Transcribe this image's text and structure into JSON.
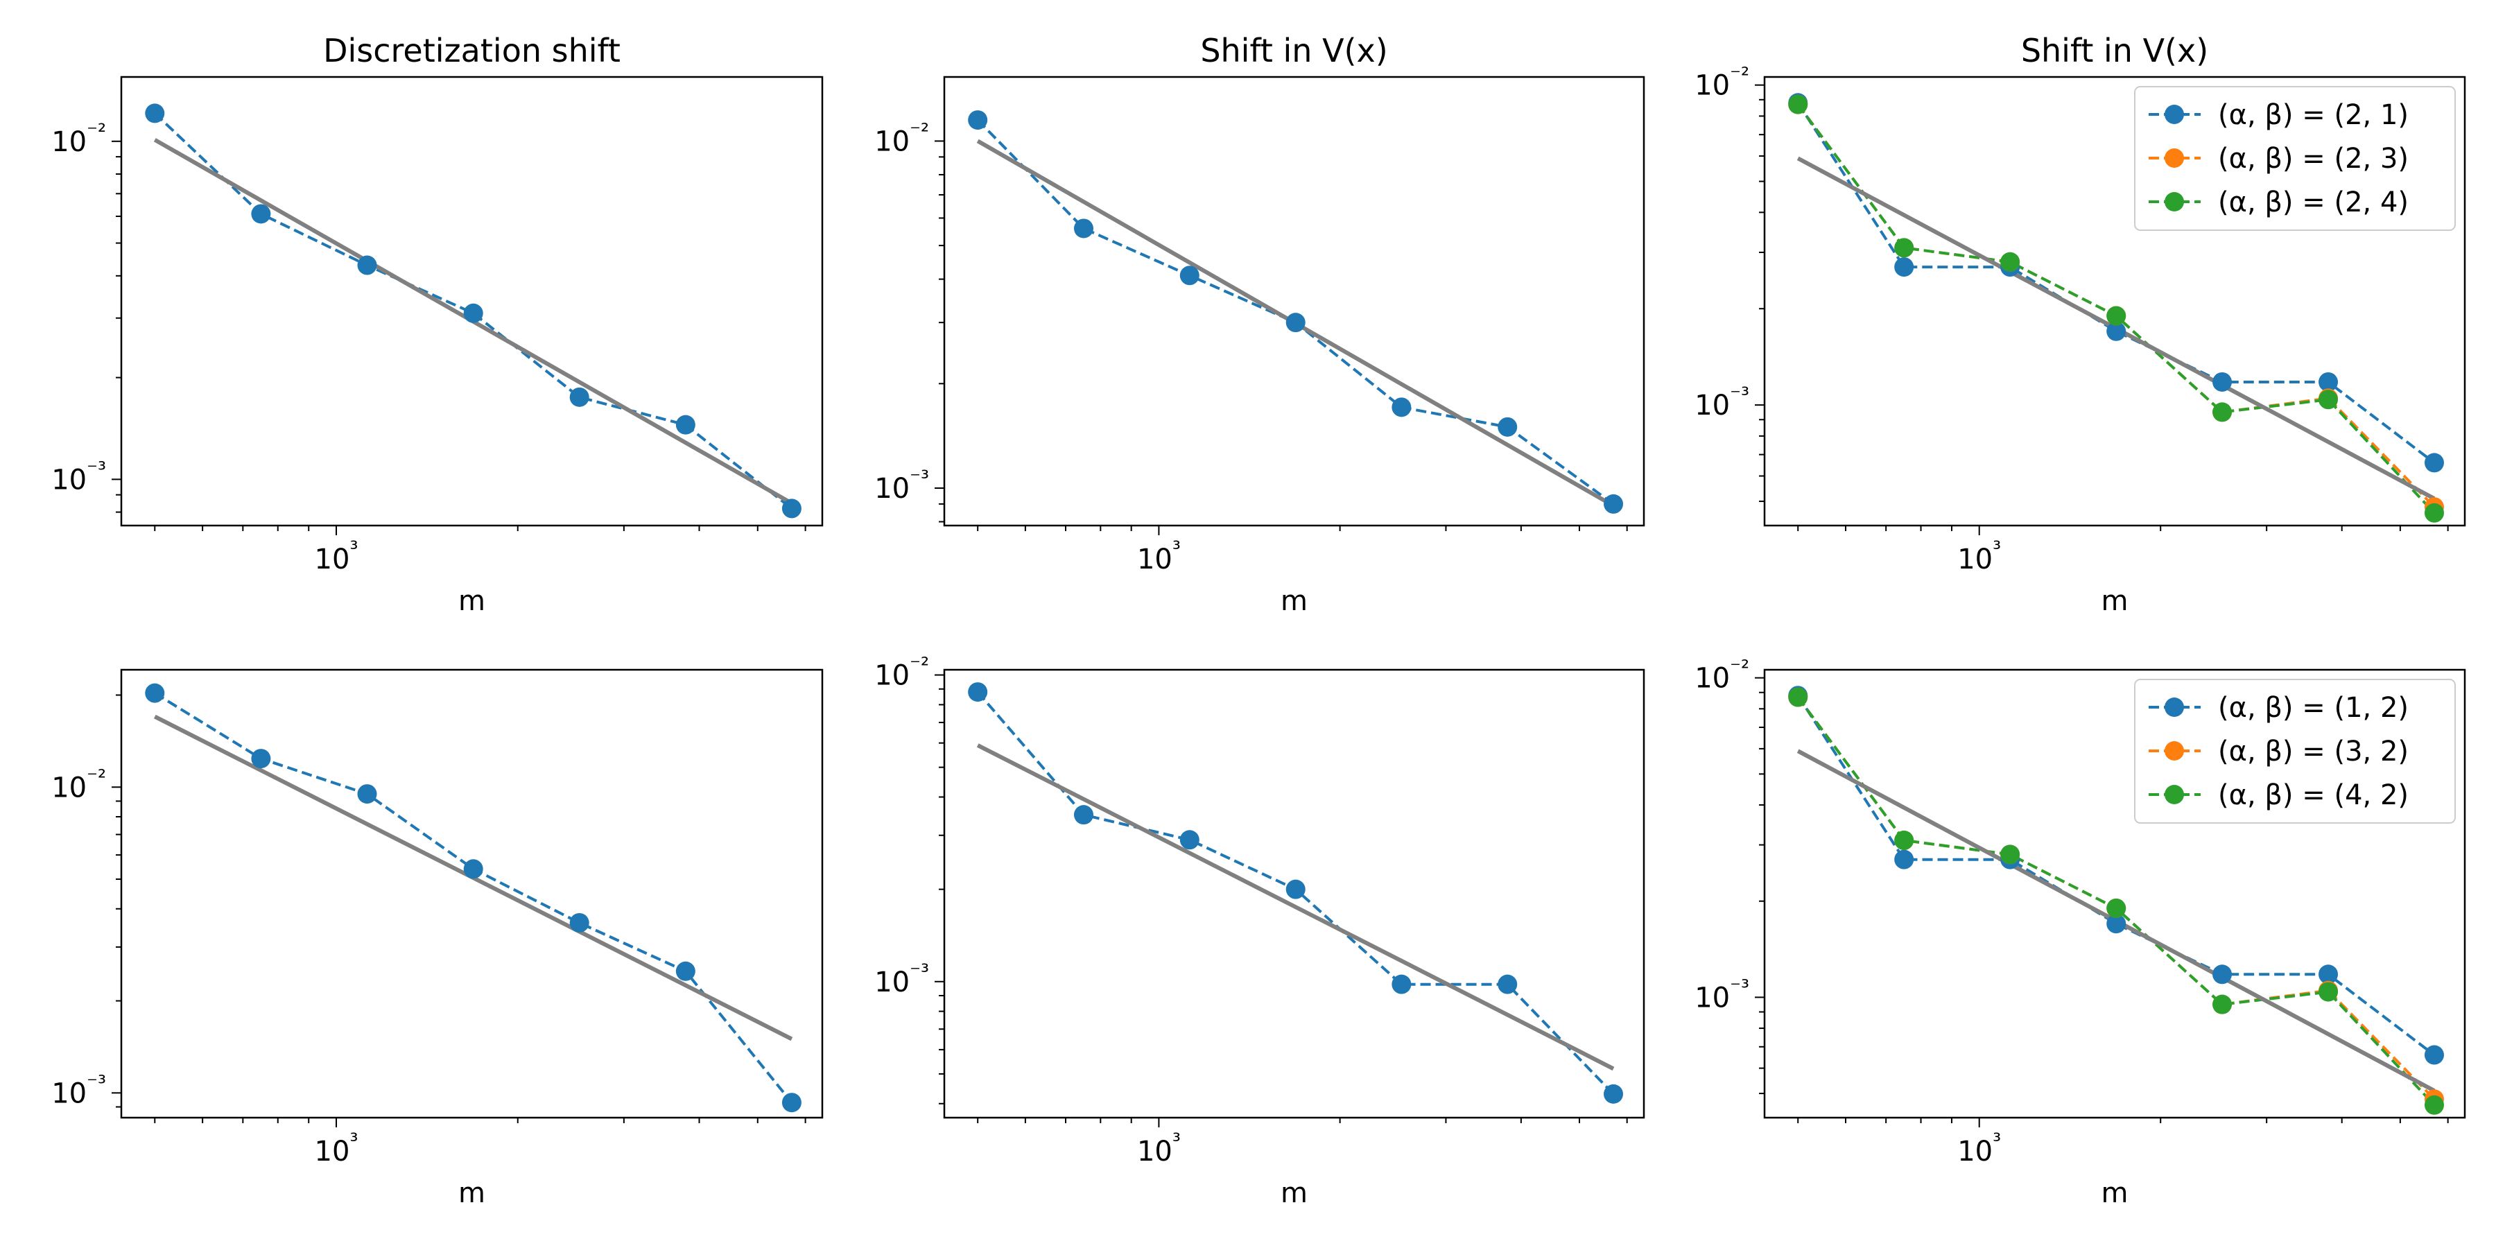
{
  "figure": {
    "colors": {
      "blue": "#1f77b4",
      "orange": "#ff7f0e",
      "green": "#2ca02c",
      "fit": "#808080"
    }
  },
  "chart_data": [
    {
      "type": "line",
      "title": "Discretization shift",
      "xlabel": "m",
      "ylabel": "",
      "xscale": "log",
      "yscale": "log",
      "xlim": [
        440,
        6400
      ],
      "ylim": [
        0.00073,
        0.0155
      ],
      "x_tick_labels": [
        "10³"
      ],
      "y_tick_labels": [
        "10⁻²",
        "10⁻³"
      ],
      "legend": null,
      "series": [
        {
          "color": "#1f77b4",
          "style": "dashed-markers",
          "x": [
            500,
            750,
            1125,
            1688,
            2531,
            3797,
            5695
          ],
          "y": [
            0.0121,
            0.0061,
            0.0043,
            0.0031,
            0.00175,
            0.00145,
            0.00082
          ]
        },
        {
          "color": "#808080",
          "style": "solid-fit",
          "x": [
            500,
            5695
          ],
          "y": [
            0.0101,
            0.00085
          ]
        }
      ]
    },
    {
      "type": "line",
      "title": "Shift in V(x)",
      "xlabel": "m",
      "ylabel": "",
      "xscale": "log",
      "yscale": "log",
      "xlim": [
        440,
        6400
      ],
      "ylim": [
        0.00078,
        0.0153
      ],
      "x_tick_labels": [
        "10³"
      ],
      "y_tick_labels": [
        "10⁻²",
        "10⁻³"
      ],
      "legend": null,
      "series": [
        {
          "color": "#1f77b4",
          "style": "dashed-markers",
          "x": [
            500,
            750,
            1125,
            1688,
            2531,
            3797,
            5695
          ],
          "y": [
            0.0115,
            0.0056,
            0.0041,
            0.003,
            0.00171,
            0.0015,
            0.0009
          ]
        },
        {
          "color": "#808080",
          "style": "solid-fit",
          "x": [
            500,
            5695
          ],
          "y": [
            0.01,
            0.00089
          ]
        }
      ]
    },
    {
      "type": "line",
      "title": "Shift in V(x)",
      "xlabel": "m",
      "ylabel": "",
      "xscale": "log",
      "yscale": "log",
      "xlim": [
        440,
        6400
      ],
      "ylim": [
        0.00042,
        0.0106
      ],
      "x_tick_labels": [
        "10³"
      ],
      "y_tick_labels": [
        "10⁻²",
        "10⁻³"
      ],
      "legend": "top-right",
      "series": [
        {
          "name": "(α, β) = (2, 1)",
          "color": "#1f77b4",
          "style": "dashed-markers",
          "x": [
            500,
            750,
            1125,
            1688,
            2531,
            3797,
            5695
          ],
          "y": [
            0.0088,
            0.0027,
            0.0027,
            0.0017,
            0.00118,
            0.00118,
            0.00066
          ]
        },
        {
          "name": "(α, β) = (2, 3)",
          "color": "#ff7f0e",
          "style": "dashed-markers",
          "x": [
            500,
            750,
            1125,
            1688,
            2531,
            3797,
            5695
          ],
          "y": [
            0.0087,
            0.0031,
            0.0028,
            0.0019,
            0.00095,
            0.00105,
            0.00048
          ]
        },
        {
          "name": "(α, β) = (2, 4)",
          "color": "#2ca02c",
          "style": "dashed-markers",
          "x": [
            500,
            750,
            1125,
            1688,
            2531,
            3797,
            5695
          ],
          "y": [
            0.0087,
            0.0031,
            0.0028,
            0.0019,
            0.00095,
            0.00104,
            0.00046
          ]
        },
        {
          "color": "#808080",
          "style": "solid-fit",
          "x": [
            500,
            5695
          ],
          "y": [
            0.0059,
            0.00051
          ]
        }
      ]
    },
    {
      "type": "line",
      "title": "",
      "xlabel": "m",
      "ylabel": "",
      "xscale": "log",
      "yscale": "log",
      "xlim": [
        440,
        6400
      ],
      "ylim": [
        0.00083,
        0.0242
      ],
      "x_tick_labels": [
        "10³"
      ],
      "y_tick_labels": [
        "10⁻²",
        "10⁻³"
      ],
      "legend": null,
      "series": [
        {
          "color": "#1f77b4",
          "style": "dashed-markers",
          "x": [
            500,
            750,
            1125,
            1688,
            2531,
            3797,
            5695
          ],
          "y": [
            0.0203,
            0.0124,
            0.0095,
            0.0054,
            0.0036,
            0.0025,
            0.00093
          ]
        },
        {
          "color": "#808080",
          "style": "solid-fit",
          "x": [
            500,
            5695
          ],
          "y": [
            0.017,
            0.0015
          ]
        }
      ]
    },
    {
      "type": "line",
      "title": "",
      "xlabel": "m",
      "ylabel": "",
      "xscale": "log",
      "yscale": "log",
      "xlim": [
        440,
        6400
      ],
      "ylim": [
        0.00036,
        0.0104
      ],
      "x_tick_labels": [
        "10³"
      ],
      "y_tick_labels": [
        "10⁻²",
        "10⁻³"
      ],
      "legend": null,
      "series": [
        {
          "color": "#1f77b4",
          "style": "dashed-markers",
          "x": [
            500,
            750,
            1125,
            1688,
            2531,
            3797,
            5695
          ],
          "y": [
            0.0088,
            0.0035,
            0.0029,
            0.002,
            0.00098,
            0.00098,
            0.00043
          ]
        },
        {
          "color": "#808080",
          "style": "solid-fit",
          "x": [
            500,
            5695
          ],
          "y": [
            0.0059,
            0.00052
          ]
        }
      ]
    },
    {
      "type": "line",
      "title": "",
      "xlabel": "m",
      "ylabel": "",
      "xscale": "log",
      "yscale": "log",
      "xlim": [
        440,
        6400
      ],
      "ylim": [
        0.00042,
        0.0106
      ],
      "x_tick_labels": [
        "10³"
      ],
      "y_tick_labels": [
        "10⁻²",
        "10⁻³"
      ],
      "legend": "top-right",
      "series": [
        {
          "name": "(α, β) = (1, 2)",
          "color": "#1f77b4",
          "style": "dashed-markers",
          "x": [
            500,
            750,
            1125,
            1688,
            2531,
            3797,
            5695
          ],
          "y": [
            0.0088,
            0.0027,
            0.0027,
            0.0017,
            0.00118,
            0.00118,
            0.00066
          ]
        },
        {
          "name": "(α, β) = (3, 2)",
          "color": "#ff7f0e",
          "style": "dashed-markers",
          "x": [
            500,
            750,
            1125,
            1688,
            2531,
            3797,
            5695
          ],
          "y": [
            0.0087,
            0.0031,
            0.0028,
            0.0019,
            0.00095,
            0.00105,
            0.00048
          ]
        },
        {
          "name": "(α, β) = (4, 2)",
          "color": "#2ca02c",
          "style": "dashed-markers",
          "x": [
            500,
            750,
            1125,
            1688,
            2531,
            3797,
            5695
          ],
          "y": [
            0.0087,
            0.0031,
            0.0028,
            0.0019,
            0.00095,
            0.00104,
            0.00046
          ]
        },
        {
          "color": "#808080",
          "style": "solid-fit",
          "x": [
            500,
            5695
          ],
          "y": [
            0.0059,
            0.00051
          ]
        }
      ]
    }
  ]
}
